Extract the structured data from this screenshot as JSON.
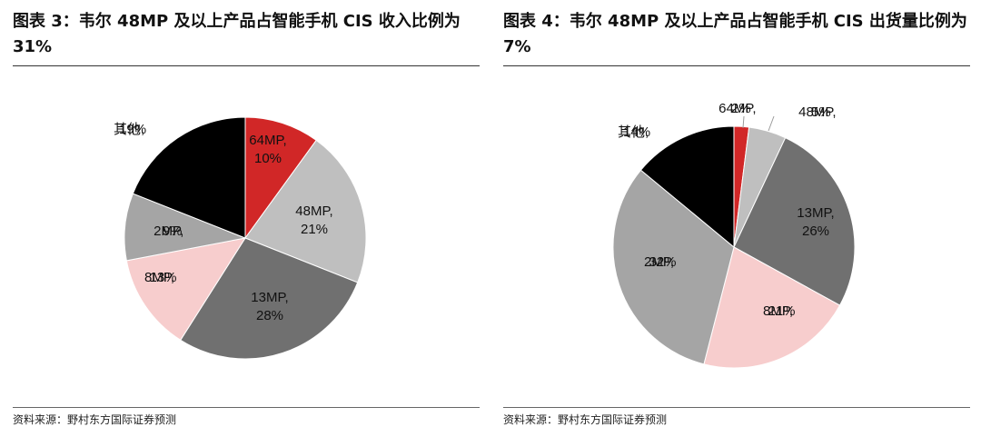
{
  "chart_data": [
    {
      "type": "pie",
      "title": "图表 3：韦尔 48MP 及以上产品占智能手机 CIS 收入比例为 31%",
      "categories": [
        "64MP,",
        "48MP,",
        "13MP,",
        "8MP,",
        "2MP,",
        "其他,"
      ],
      "values": [
        10,
        21,
        28,
        13,
        9,
        19
      ],
      "value_labels": [
        "10%",
        "21%",
        "28%",
        "13%",
        "9%",
        "19%"
      ],
      "colors": [
        "#d12727",
        "#bfbfbf",
        "#707070",
        "#f7cdcd",
        "#a5a5a5",
        "#000000"
      ],
      "source": "资料来源：野村东方国际证券预测"
    },
    {
      "type": "pie",
      "title": "图表 4：韦尔 48MP 及以上产品占智能手机 CIS 出货量比例为 7%",
      "categories": [
        "64MP,",
        "48MP,",
        "13MP,",
        "8MP,",
        "2MP,",
        "其他,"
      ],
      "values": [
        2,
        5,
        26,
        21,
        32,
        14
      ],
      "value_labels": [
        "2%",
        "5%",
        "26%",
        "21%",
        "32%",
        "14%"
      ],
      "colors": [
        "#d12727",
        "#bfbfbf",
        "#707070",
        "#f7cdcd",
        "#a5a5a5",
        "#000000"
      ],
      "source": "资料来源：野村东方国际证券预测"
    }
  ]
}
